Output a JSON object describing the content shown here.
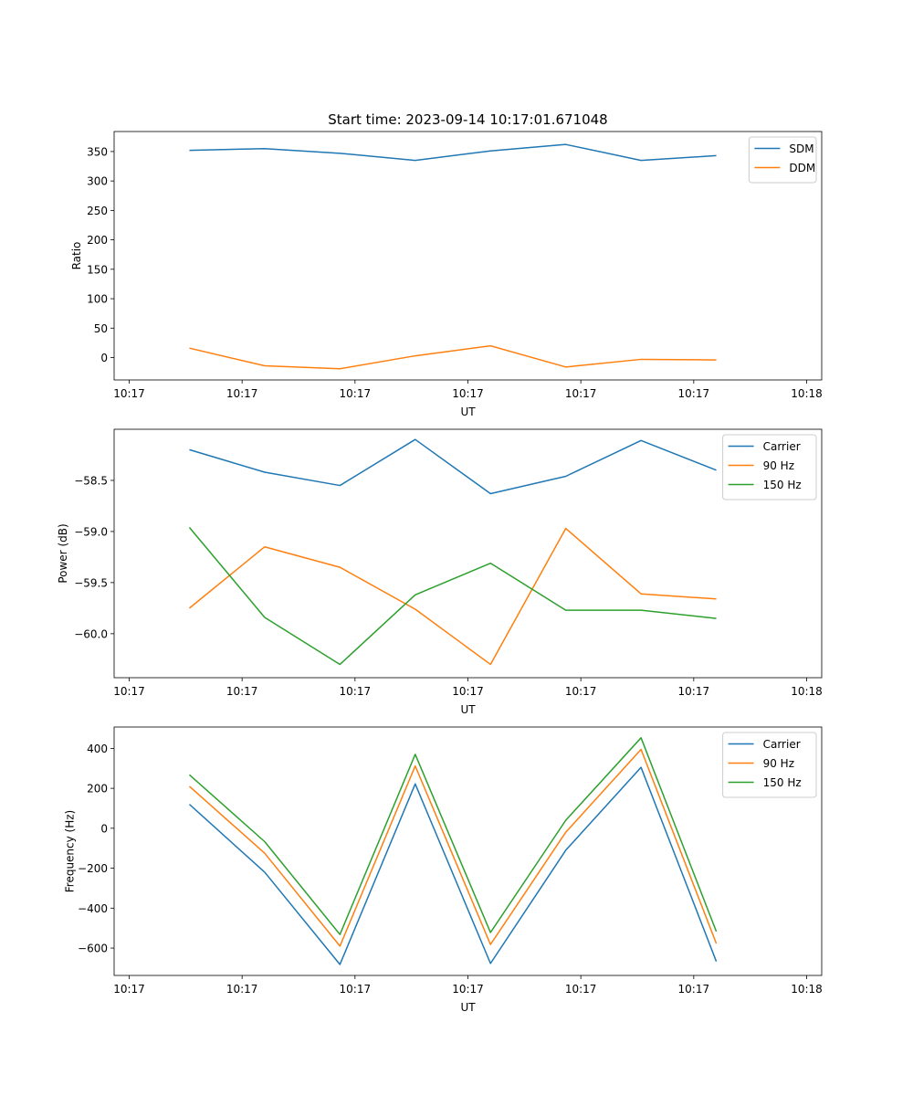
{
  "figure_title": "Start time: 2023-09-14 10:17:01.671048",
  "colors": {
    "blue": "#1f77b4",
    "orange": "#ff7f0e",
    "green": "#2ca02c"
  },
  "chart_data": [
    {
      "type": "line",
      "title": "Start time: 2023-09-14 10:17:01.671048",
      "xlabel": "UT",
      "ylabel": "Ratio",
      "xlim": [
        0,
        9.4
      ],
      "x_ticks": [
        0.2,
        1.7,
        3.2,
        4.7,
        6.2,
        7.7,
        9.2
      ],
      "x_tick_labels": [
        "10:17",
        "10:17",
        "10:17",
        "10:17",
        "10:17",
        "10:17",
        "10:18"
      ],
      "ylim": [
        -38,
        384
      ],
      "y_ticks": [
        0,
        50,
        100,
        150,
        200,
        250,
        300,
        350
      ],
      "y_tick_labels": [
        "0",
        "50",
        "100",
        "150",
        "200",
        "250",
        "300",
        "350"
      ],
      "legend_position": "top-right",
      "x": [
        1,
        2,
        3,
        4,
        5,
        6,
        7,
        8
      ],
      "series": [
        {
          "name": "SDM",
          "color": "#1f77b4",
          "values": [
            352,
            355,
            347,
            335,
            351,
            362,
            335,
            343
          ]
        },
        {
          "name": "DDM",
          "color": "#ff7f0e",
          "values": [
            16,
            -14,
            -19,
            3,
            20,
            -16,
            -3,
            -4
          ]
        }
      ]
    },
    {
      "type": "line",
      "title": "",
      "xlabel": "UT",
      "ylabel": "Power (dB)",
      "xlim": [
        0,
        9.4
      ],
      "x_ticks": [
        0.2,
        1.7,
        3.2,
        4.7,
        6.2,
        7.7,
        9.2
      ],
      "x_tick_labels": [
        "10:17",
        "10:17",
        "10:17",
        "10:17",
        "10:17",
        "10:17",
        "10:18"
      ],
      "ylim": [
        -60.43,
        -58.0
      ],
      "y_ticks": [
        -60.0,
        -59.5,
        -59.0,
        -58.5
      ],
      "y_tick_labels": [
        "−60.0",
        "−59.5",
        "−59.0",
        "−58.5"
      ],
      "legend_position": "top-right",
      "x": [
        1,
        2,
        3,
        4,
        5,
        6,
        7,
        8
      ],
      "series": [
        {
          "name": "Carrier",
          "color": "#1f77b4",
          "values": [
            -58.2,
            -58.42,
            -58.55,
            -58.1,
            -58.63,
            -58.46,
            -58.11,
            -58.4
          ]
        },
        {
          "name": "90 Hz",
          "color": "#ff7f0e",
          "values": [
            -59.75,
            -59.15,
            -59.35,
            -59.76,
            -60.3,
            -58.97,
            -59.61,
            -59.66
          ]
        },
        {
          "name": "150 Hz",
          "color": "#2ca02c",
          "values": [
            -58.96,
            -59.84,
            -60.3,
            -59.62,
            -59.31,
            -59.77,
            -59.77,
            -59.85
          ]
        }
      ]
    },
    {
      "type": "line",
      "title": "",
      "xlabel": "UT",
      "ylabel": "Frequency (Hz)",
      "xlim": [
        0,
        9.4
      ],
      "x_ticks": [
        0.2,
        1.7,
        3.2,
        4.7,
        6.2,
        7.7,
        9.2
      ],
      "x_tick_labels": [
        "10:17",
        "10:17",
        "10:17",
        "10:17",
        "10:17",
        "10:17",
        "10:18"
      ],
      "ylim": [
        -737,
        507
      ],
      "y_ticks": [
        -600,
        -400,
        -200,
        0,
        200,
        400
      ],
      "y_tick_labels": [
        "−600",
        "−400",
        "−200",
        "0",
        "200",
        "400"
      ],
      "legend_position": "top-right",
      "x": [
        1,
        2,
        3,
        4,
        5,
        6,
        7,
        8
      ],
      "series": [
        {
          "name": "Carrier",
          "color": "#1f77b4",
          "values": [
            120,
            -220,
            -682,
            222,
            -677,
            -110,
            305,
            -667
          ]
        },
        {
          "name": "90 Hz",
          "color": "#ff7f0e",
          "values": [
            210,
            -125,
            -590,
            312,
            -582,
            -20,
            395,
            -577
          ]
        },
        {
          "name": "150 Hz",
          "color": "#2ca02c",
          "values": [
            268,
            -67,
            -532,
            370,
            -522,
            40,
            453,
            -517
          ]
        }
      ]
    }
  ]
}
